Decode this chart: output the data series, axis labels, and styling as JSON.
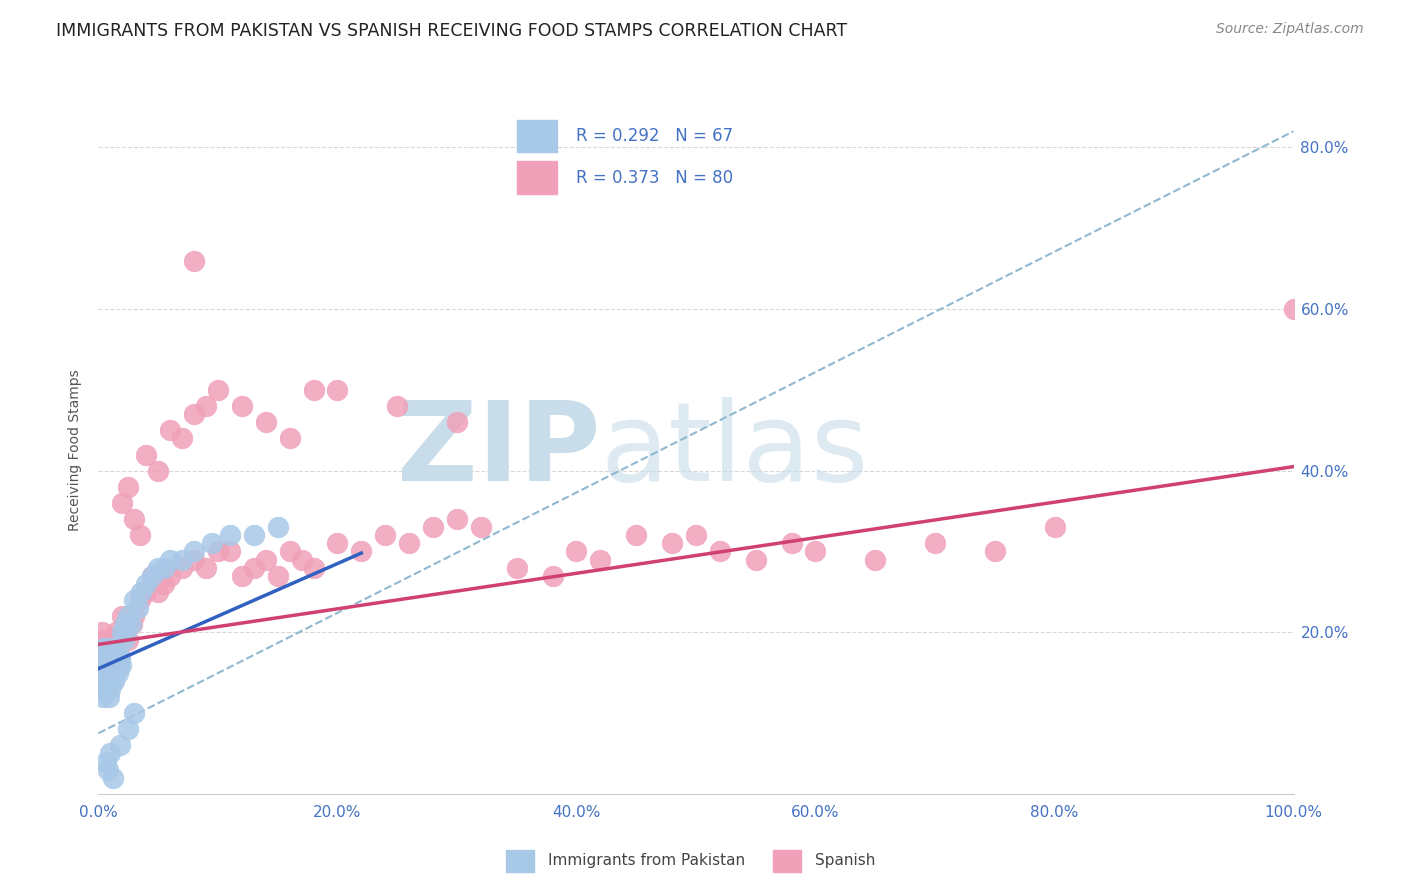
{
  "title": "IMMIGRANTS FROM PAKISTAN VS SPANISH RECEIVING FOOD STAMPS CORRELATION CHART",
  "source": "Source: ZipAtlas.com",
  "ylabel": "Receiving Food Stamps",
  "xlim": [
    0,
    1.0
  ],
  "ylim": [
    0,
    0.85
  ],
  "xtick_vals": [
    0.0,
    0.2,
    0.4,
    0.6,
    0.8,
    1.0
  ],
  "xtick_labels": [
    "0.0%",
    "20.0%",
    "40.0%",
    "60.0%",
    "80.0%",
    "100.0%"
  ],
  "ytick_vals": [
    0.2,
    0.4,
    0.6,
    0.8
  ],
  "ytick_labels": [
    "20.0%",
    "40.0%",
    "60.0%",
    "80.0%"
  ],
  "legend_r1": "R = 0.292",
  "legend_n1": "N = 67",
  "legend_r2": "R = 0.373",
  "legend_n2": "N = 80",
  "color_pakistan": "#a8c8e8",
  "color_spanish": "#f0a0b8",
  "line_color_pakistan": "#3060c0",
  "line_color_spanish": "#d04070",
  "dashed_line_color": "#90b8d0",
  "watermark_color": "#c8dcea",
  "background_color": "#ffffff",
  "grid_color": "#d8d8d8",
  "title_fontsize": 12.5,
  "axis_label_fontsize": 10,
  "tick_fontsize": 11,
  "legend_fontsize": 13,
  "pakistan_x": [
    0.002,
    0.003,
    0.003,
    0.004,
    0.004,
    0.004,
    0.005,
    0.005,
    0.005,
    0.006,
    0.006,
    0.006,
    0.007,
    0.007,
    0.007,
    0.008,
    0.008,
    0.008,
    0.009,
    0.009,
    0.009,
    0.01,
    0.01,
    0.01,
    0.01,
    0.011,
    0.011,
    0.012,
    0.012,
    0.013,
    0.013,
    0.014,
    0.014,
    0.015,
    0.015,
    0.016,
    0.016,
    0.017,
    0.018,
    0.019,
    0.02,
    0.021,
    0.022,
    0.023,
    0.025,
    0.027,
    0.03,
    0.033,
    0.036,
    0.04,
    0.045,
    0.05,
    0.055,
    0.06,
    0.07,
    0.08,
    0.095,
    0.11,
    0.13,
    0.15,
    0.03,
    0.025,
    0.018,
    0.01,
    0.006,
    0.008,
    0.012
  ],
  "pakistan_y": [
    0.17,
    0.16,
    0.15,
    0.14,
    0.13,
    0.12,
    0.18,
    0.17,
    0.16,
    0.15,
    0.14,
    0.13,
    0.17,
    0.16,
    0.15,
    0.18,
    0.17,
    0.13,
    0.16,
    0.14,
    0.12,
    0.18,
    0.17,
    0.16,
    0.13,
    0.15,
    0.14,
    0.17,
    0.15,
    0.16,
    0.14,
    0.17,
    0.15,
    0.18,
    0.16,
    0.17,
    0.15,
    0.16,
    0.17,
    0.16,
    0.2,
    0.19,
    0.21,
    0.2,
    0.22,
    0.21,
    0.24,
    0.23,
    0.25,
    0.26,
    0.27,
    0.28,
    0.28,
    0.29,
    0.29,
    0.3,
    0.31,
    0.32,
    0.32,
    0.33,
    0.1,
    0.08,
    0.06,
    0.05,
    0.04,
    0.03,
    0.02
  ],
  "spanish_x": [
    0.003,
    0.004,
    0.005,
    0.006,
    0.007,
    0.008,
    0.009,
    0.01,
    0.011,
    0.012,
    0.013,
    0.014,
    0.015,
    0.016,
    0.018,
    0.02,
    0.022,
    0.025,
    0.028,
    0.03,
    0.035,
    0.04,
    0.045,
    0.05,
    0.055,
    0.06,
    0.07,
    0.08,
    0.09,
    0.1,
    0.11,
    0.12,
    0.13,
    0.14,
    0.15,
    0.16,
    0.17,
    0.18,
    0.2,
    0.22,
    0.24,
    0.26,
    0.28,
    0.3,
    0.32,
    0.35,
    0.38,
    0.4,
    0.42,
    0.45,
    0.48,
    0.5,
    0.52,
    0.55,
    0.58,
    0.6,
    0.65,
    0.7,
    0.75,
    0.8,
    0.02,
    0.025,
    0.03,
    0.035,
    0.04,
    0.05,
    0.06,
    0.07,
    0.08,
    0.09,
    0.1,
    0.12,
    0.14,
    0.16,
    0.18,
    0.2,
    0.25,
    0.3,
    0.08,
    1.0
  ],
  "spanish_y": [
    0.2,
    0.19,
    0.18,
    0.17,
    0.16,
    0.17,
    0.18,
    0.19,
    0.18,
    0.17,
    0.19,
    0.18,
    0.2,
    0.19,
    0.17,
    0.22,
    0.2,
    0.19,
    0.21,
    0.22,
    0.24,
    0.25,
    0.27,
    0.25,
    0.26,
    0.27,
    0.28,
    0.29,
    0.28,
    0.3,
    0.3,
    0.27,
    0.28,
    0.29,
    0.27,
    0.3,
    0.29,
    0.28,
    0.31,
    0.3,
    0.32,
    0.31,
    0.33,
    0.34,
    0.33,
    0.28,
    0.27,
    0.3,
    0.29,
    0.32,
    0.31,
    0.32,
    0.3,
    0.29,
    0.31,
    0.3,
    0.29,
    0.31,
    0.3,
    0.33,
    0.36,
    0.38,
    0.34,
    0.32,
    0.42,
    0.4,
    0.45,
    0.44,
    0.47,
    0.48,
    0.5,
    0.48,
    0.46,
    0.44,
    0.5,
    0.5,
    0.48,
    0.46,
    0.66,
    0.6
  ],
  "pak_line_x0": 0.0,
  "pak_line_y0": 0.155,
  "pak_line_x1": 0.2,
  "pak_line_y1": 0.285,
  "esp_line_x0": 0.0,
  "esp_line_y0": 0.185,
  "esp_line_x1": 1.0,
  "esp_line_y1": 0.405,
  "dash_line_x0": 0.0,
  "dash_line_y0": 0.075,
  "dash_line_x1": 1.0,
  "dash_line_y1": 0.82
}
